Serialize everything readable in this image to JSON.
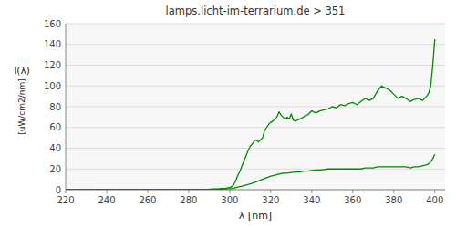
{
  "chart_data": {
    "type": "line",
    "title": "lamps.licht-im-terrarium.de > 351",
    "xlabel": "λ [nm]",
    "ylabel": [
      "I(λ)",
      "[uW/cm2/nm]"
    ],
    "xlim": [
      220,
      405
    ],
    "ylim": [
      0,
      160
    ],
    "xticks": [
      220,
      240,
      260,
      280,
      300,
      320,
      340,
      360,
      380,
      400
    ],
    "yticks": [
      0,
      20,
      40,
      60,
      80,
      100,
      120,
      140,
      160
    ],
    "grid": true,
    "series": [
      {
        "color": "#008800",
        "x": [
          220,
          290,
          295,
          298,
          300,
          301,
          302,
          303,
          304,
          305,
          306,
          307,
          308,
          309,
          310,
          311,
          312,
          313,
          314,
          315,
          316,
          317,
          318,
          319,
          320,
          321,
          322,
          323,
          324,
          325,
          326,
          327,
          328,
          329,
          330,
          331,
          332,
          333,
          334,
          335,
          336,
          337,
          338,
          339,
          340,
          342,
          344,
          346,
          348,
          350,
          352,
          354,
          356,
          358,
          360,
          362,
          364,
          366,
          368,
          370,
          372,
          374,
          376,
          378,
          380,
          382,
          384,
          386,
          388,
          390,
          392,
          394,
          396,
          397,
          398,
          399,
          400
        ],
        "values": [
          0,
          0.5,
          1.0,
          1.5,
          2,
          3,
          5,
          9,
          14,
          18,
          23,
          28,
          33,
          38,
          42,
          44,
          47,
          48,
          46,
          48,
          50,
          57,
          60,
          63,
          65,
          66,
          68,
          70,
          75,
          72,
          70,
          68,
          70,
          68,
          73,
          67,
          66,
          67,
          68,
          69,
          70,
          72,
          72,
          74,
          76,
          74,
          76,
          77,
          78,
          80,
          79,
          82,
          81,
          83,
          84,
          82,
          85,
          88,
          86,
          88,
          95,
          100,
          98,
          96,
          92,
          88,
          90,
          88,
          85,
          87,
          88,
          86,
          90,
          93,
          100,
          120,
          145
        ]
      },
      {
        "color": "#008800",
        "x": [
          220,
          290,
          295,
          298,
          300,
          301,
          302,
          304,
          306,
          308,
          310,
          312,
          314,
          316,
          318,
          320,
          322,
          324,
          326,
          328,
          330,
          332,
          334,
          336,
          338,
          340,
          342,
          344,
          346,
          348,
          350,
          352,
          354,
          356,
          358,
          360,
          362,
          364,
          366,
          368,
          370,
          372,
          374,
          376,
          378,
          380,
          382,
          384,
          386,
          388,
          390,
          392,
          394,
          396,
          397,
          398,
          399,
          400
        ],
        "values": [
          0,
          0.2,
          0.5,
          0.8,
          1.0,
          1.2,
          1.5,
          2.5,
          3.5,
          4.5,
          5.5,
          7,
          8.5,
          10,
          11.5,
          13,
          14,
          15,
          16,
          16,
          16.5,
          17,
          17,
          18,
          18,
          18.5,
          19,
          19,
          19.5,
          20,
          20,
          20,
          20,
          20,
          20,
          20,
          20,
          20,
          21,
          21,
          21,
          22,
          22,
          22,
          22,
          22,
          22,
          22,
          22,
          21,
          22,
          22,
          23,
          24,
          25,
          27,
          30,
          34
        ]
      }
    ]
  }
}
